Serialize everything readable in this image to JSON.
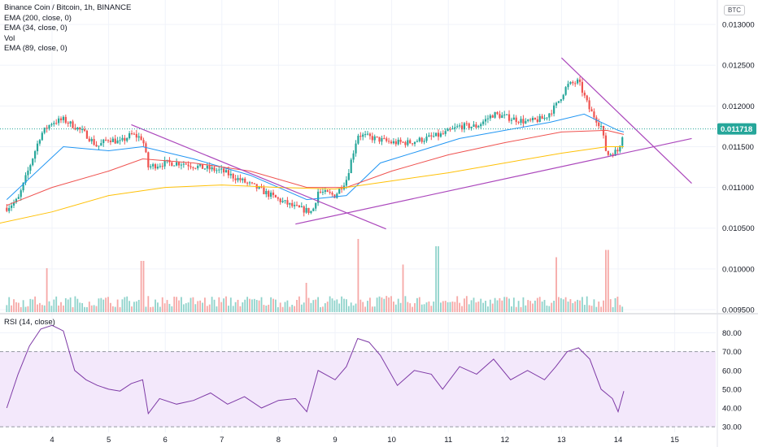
{
  "legend": {
    "title": "Binance Coin / Bitcoin, 1h, BINANCE",
    "ema200": "EMA (200, close, 0)",
    "ema34": "EMA (34, close, 0)",
    "vol": "Vol",
    "ema89": "EMA (89, close, 0)"
  },
  "rsi_legend": "RSI (14, close)",
  "currency": "BTC",
  "last_price_label": "0.011718",
  "colors": {
    "up": "#26a69a",
    "down": "#ef5350",
    "ema34": "#2196f3",
    "ema89": "#ef5350",
    "ema200": "#ffc107",
    "trend": "#ab47bc",
    "rsi": "#7e3aa6",
    "rsi_band": "#f3e8fb"
  },
  "chart_data": [
    {
      "type": "candlestick",
      "title": "Binance Coin / Bitcoin, 1h, BINANCE",
      "x_ticks": [
        "4",
        "5",
        "6",
        "7",
        "8",
        "9",
        "10",
        "11",
        "12",
        "13",
        "14",
        "15"
      ],
      "y_ticks": [
        "0.009500",
        "0.010000",
        "0.010500",
        "0.011000",
        "0.011500",
        "0.012000",
        "0.012500",
        "0.013000"
      ],
      "ylim": [
        0.00945,
        0.0133
      ],
      "last_price": 0.011718,
      "price_path": [
        [
          3.2,
          0.01075
        ],
        [
          3.4,
          0.01085
        ],
        [
          3.6,
          0.01125
        ],
        [
          3.8,
          0.01165
        ],
        [
          4.0,
          0.0118
        ],
        [
          4.2,
          0.01183
        ],
        [
          4.4,
          0.01175
        ],
        [
          4.6,
          0.01165
        ],
        [
          4.8,
          0.0115
        ],
        [
          5.0,
          0.0116
        ],
        [
          5.2,
          0.01155
        ],
        [
          5.4,
          0.01165
        ],
        [
          5.6,
          0.0116
        ],
        [
          5.7,
          0.01125
        ],
        [
          6.0,
          0.0113
        ],
        [
          6.3,
          0.0113
        ],
        [
          6.6,
          0.01125
        ],
        [
          7.0,
          0.0112
        ],
        [
          7.3,
          0.0111
        ],
        [
          7.6,
          0.011
        ],
        [
          8.0,
          0.01085
        ],
        [
          8.3,
          0.01075
        ],
        [
          8.6,
          0.0107
        ],
        [
          8.7,
          0.01095
        ],
        [
          9.0,
          0.0109
        ],
        [
          9.2,
          0.0111
        ],
        [
          9.4,
          0.01165
        ],
        [
          9.7,
          0.0116
        ],
        [
          10.0,
          0.01155
        ],
        [
          10.3,
          0.01155
        ],
        [
          10.6,
          0.0116
        ],
        [
          10.9,
          0.01165
        ],
        [
          11.2,
          0.01175
        ],
        [
          11.5,
          0.01175
        ],
        [
          11.8,
          0.0119
        ],
        [
          12.1,
          0.01185
        ],
        [
          12.4,
          0.0118
        ],
        [
          12.7,
          0.01185
        ],
        [
          12.9,
          0.012
        ],
        [
          13.1,
          0.01225
        ],
        [
          13.3,
          0.0123
        ],
        [
          13.5,
          0.01195
        ],
        [
          13.7,
          0.01175
        ],
        [
          13.8,
          0.0114
        ],
        [
          14.0,
          0.01145
        ],
        [
          14.1,
          0.011718
        ]
      ],
      "series": [
        {
          "name": "EMA (34, close, 0)",
          "points": [
            [
              3.2,
              0.01085
            ],
            [
              4.2,
              0.0115
            ],
            [
              5.0,
              0.01145
            ],
            [
              5.6,
              0.0115
            ],
            [
              6.5,
              0.01135
            ],
            [
              7.5,
              0.01115
            ],
            [
              8.5,
              0.01085
            ],
            [
              9.2,
              0.0109
            ],
            [
              9.8,
              0.0113
            ],
            [
              10.5,
              0.01145
            ],
            [
              11.2,
              0.0116
            ],
            [
              12.0,
              0.0117
            ],
            [
              12.8,
              0.0118
            ],
            [
              13.4,
              0.0119
            ],
            [
              14.0,
              0.0117
            ],
            [
              14.1,
              0.01168
            ]
          ]
        },
        {
          "name": "EMA (89, close, 0)",
          "points": [
            [
              3.2,
              0.01078
            ],
            [
              4.0,
              0.011
            ],
            [
              5.0,
              0.0112
            ],
            [
              5.6,
              0.01135
            ],
            [
              6.5,
              0.0113
            ],
            [
              7.5,
              0.0112
            ],
            [
              8.5,
              0.011
            ],
            [
              9.2,
              0.011
            ],
            [
              10.0,
              0.0112
            ],
            [
              11.0,
              0.0114
            ],
            [
              12.0,
              0.01155
            ],
            [
              13.0,
              0.01168
            ],
            [
              13.8,
              0.0117
            ],
            [
              14.1,
              0.01165
            ]
          ]
        },
        {
          "name": "EMA (200, close, 0)",
          "points": [
            [
              3.0,
              0.01055
            ],
            [
              4.0,
              0.0107
            ],
            [
              5.0,
              0.0109
            ],
            [
              6.0,
              0.011
            ],
            [
              7.0,
              0.01103
            ],
            [
              8.0,
              0.011
            ],
            [
              9.0,
              0.01098
            ],
            [
              10.0,
              0.01108
            ],
            [
              11.0,
              0.01118
            ],
            [
              12.0,
              0.0113
            ],
            [
              13.0,
              0.01142
            ],
            [
              13.8,
              0.0115
            ],
            [
              14.1,
              0.0115
            ]
          ]
        }
      ],
      "trendlines": [
        [
          [
            5.4,
            0.01177
          ],
          [
            9.9,
            0.01049
          ]
        ],
        [
          [
            8.3,
            0.01055
          ],
          [
            15.3,
            0.0116
          ]
        ],
        [
          [
            13.0,
            0.01259
          ],
          [
            15.3,
            0.01105
          ]
        ]
      ]
    },
    {
      "type": "bar",
      "title": "Vol",
      "note": "volume histogram overlaid at the bottom of the price pane",
      "relative_peaks": [
        [
          3.9,
          0.6
        ],
        [
          5.6,
          0.7
        ],
        [
          8.5,
          0.4
        ],
        [
          9.4,
          1.0
        ],
        [
          10.2,
          0.65
        ],
        [
          10.8,
          0.9
        ],
        [
          12.9,
          0.75
        ],
        [
          13.8,
          0.85
        ]
      ]
    },
    {
      "type": "line",
      "title": "RSI (14, close)",
      "y_ticks": [
        "30.00",
        "40.00",
        "50.00",
        "60.00",
        "70.00",
        "80.00"
      ],
      "ylim": [
        27,
        85
      ],
      "bands": [
        30,
        70
      ],
      "points": [
        [
          3.2,
          40
        ],
        [
          3.4,
          58
        ],
        [
          3.6,
          73
        ],
        [
          3.8,
          82
        ],
        [
          4.0,
          84
        ],
        [
          4.2,
          81
        ],
        [
          4.4,
          60
        ],
        [
          4.6,
          55
        ],
        [
          4.8,
          52
        ],
        [
          5.0,
          50
        ],
        [
          5.2,
          49
        ],
        [
          5.4,
          53
        ],
        [
          5.6,
          55
        ],
        [
          5.7,
          37
        ],
        [
          5.9,
          45
        ],
        [
          6.2,
          42
        ],
        [
          6.5,
          44
        ],
        [
          6.8,
          48
        ],
        [
          7.1,
          42
        ],
        [
          7.4,
          46
        ],
        [
          7.7,
          40
        ],
        [
          8.0,
          44
        ],
        [
          8.3,
          45
        ],
        [
          8.5,
          38
        ],
        [
          8.7,
          60
        ],
        [
          9.0,
          55
        ],
        [
          9.2,
          62
        ],
        [
          9.4,
          77
        ],
        [
          9.6,
          75
        ],
        [
          9.8,
          68
        ],
        [
          10.1,
          52
        ],
        [
          10.4,
          60
        ],
        [
          10.7,
          58
        ],
        [
          10.9,
          50
        ],
        [
          11.2,
          62
        ],
        [
          11.5,
          58
        ],
        [
          11.8,
          66
        ],
        [
          12.1,
          55
        ],
        [
          12.4,
          60
        ],
        [
          12.7,
          55
        ],
        [
          12.9,
          62
        ],
        [
          13.1,
          70
        ],
        [
          13.3,
          72
        ],
        [
          13.5,
          66
        ],
        [
          13.7,
          50
        ],
        [
          13.9,
          45
        ],
        [
          14.0,
          38
        ],
        [
          14.1,
          49
        ]
      ]
    }
  ]
}
